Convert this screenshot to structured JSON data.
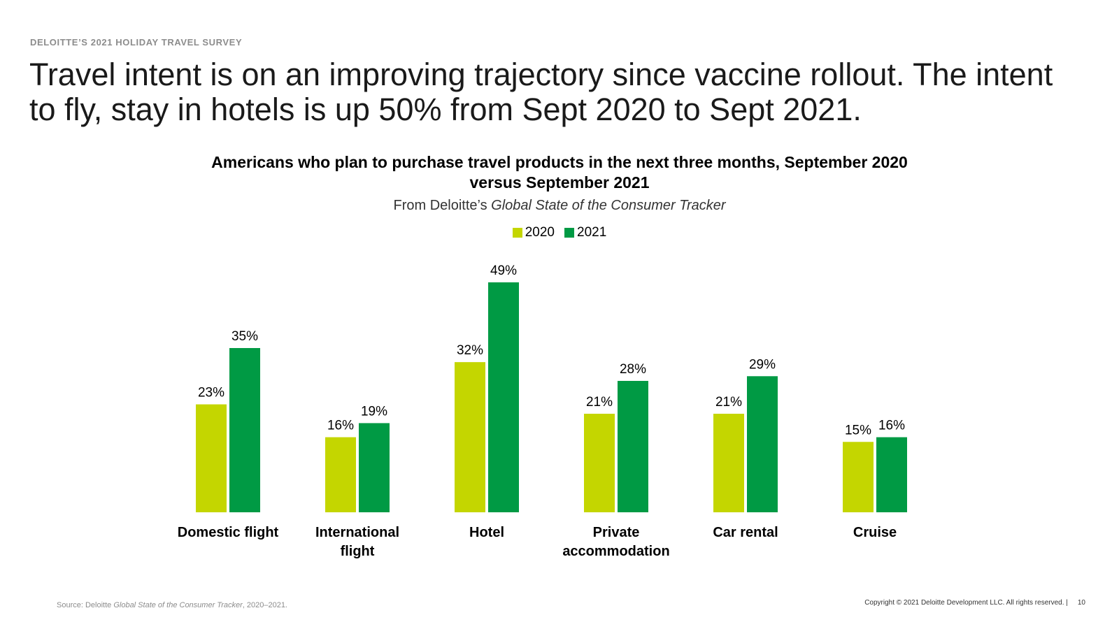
{
  "header": {
    "eyebrow": "DELOITTE’S 2021 HOLIDAY TRAVEL SURVEY",
    "headline": "Travel intent is on an improving trajectory since vaccine rollout. The intent to fly, stay in hotels is up 50% from Sept 2020 to Sept 2021."
  },
  "subtitle": {
    "prefix": "From Deloitte’s",
    "italic": "Global State of the Consumer Tracker"
  },
  "chart_data": {
    "type": "bar",
    "title": "Americans who plan to purchase travel products in the next three months, September 2020 versus September 2021",
    "categories": [
      "Domestic flight",
      "International flight",
      "Hotel",
      "Private accommodation",
      "Car rental",
      "Cruise"
    ],
    "category_lines": [
      [
        "Domestic flight"
      ],
      [
        "International",
        "flight"
      ],
      [
        "Hotel"
      ],
      [
        "Private",
        "accommodation"
      ],
      [
        "Car rental"
      ],
      [
        "Cruise"
      ]
    ],
    "series": [
      {
        "name": "2020",
        "color": "#C4D600",
        "values": [
          23,
          16,
          32,
          21,
          21,
          15
        ],
        "labels": [
          "23%",
          "16%",
          "32%",
          "21%",
          "21%",
          "15%"
        ]
      },
      {
        "name": "2021",
        "color": "#009A44",
        "values": [
          35,
          19,
          49,
          28,
          29,
          16
        ],
        "labels": [
          "35%",
          "19%",
          "49%",
          "28%",
          "29%",
          "16%"
        ]
      }
    ],
    "ylim": [
      0,
      49
    ],
    "legend_position": "top-center",
    "grid": false
  },
  "footer": {
    "source_prefix": "Source: Deloitte",
    "source_italic": "Global State of the Consumer Tracker",
    "source_suffix": ", 2020–2021.",
    "copyright": "Copyright © 2021 Deloitte Development LLC. All rights reserved.  |",
    "page_number": "10"
  }
}
